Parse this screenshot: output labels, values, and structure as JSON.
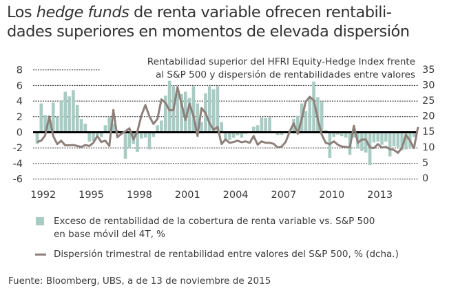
{
  "title": {
    "part1": "Los ",
    "italic": "hedge funds",
    "part2": " de renta variable ofrecen rentabili-",
    "line2": "dades superiores en momentos de elevada dispersión"
  },
  "chart_data": {
    "type": "bar+line",
    "subtitle_lines": [
      "Rentabilidad superior del HFRI Equity-Hedge Index frente",
      "al S&P 500 y dispersión de rentabilidades entre valores"
    ],
    "x_start": "1992Q1",
    "frequency": "quarterly",
    "x_tick_labels": [
      "1992",
      "1995",
      "1998",
      "2001",
      "2004",
      "2007",
      "2010",
      "2013"
    ],
    "left_axis": {
      "ylim": [
        -6,
        8
      ],
      "ticks": [
        "8",
        "6",
        "4",
        "2",
        "0",
        "-2",
        "-4",
        "-6"
      ]
    },
    "right_axis": {
      "ylim": [
        0,
        35
      ],
      "ticks": [
        "35",
        "30",
        "25",
        "20",
        "15",
        "10",
        "5",
        "0"
      ]
    },
    "grid": "horizontal dashed",
    "series": [
      {
        "name": "Exceso de rentabilidad de la cobertura de renta variable vs. S&P 500 en base móvil del 4T, %",
        "legend_lines": [
          "Exceso de rentabilidad de la cobertura de renta variable vs. S&P 500",
          "en base móvil del 4T, %"
        ],
        "type": "bar",
        "axis": "left",
        "color": "#a8cbc3",
        "values": [
          -1.5,
          3.7,
          2.2,
          1.9,
          3.8,
          2.0,
          4.1,
          5.2,
          4.6,
          5.4,
          3.5,
          1.7,
          1.1,
          -1.2,
          -1.1,
          -0.4,
          -0.6,
          0.9,
          1.9,
          1.1,
          0.3,
          -0.2,
          -3.4,
          -2.0,
          -1.5,
          -2.5,
          -0.8,
          -0.7,
          -2.2,
          -0.6,
          0.9,
          1.5,
          4.7,
          6.6,
          6.0,
          4.9,
          4.9,
          5.2,
          4.4,
          5.9,
          3.7,
          1.3,
          5.0,
          5.9,
          5.5,
          5.9,
          1.3,
          -1.0,
          -1.0,
          -0.7,
          -0.4,
          -0.7,
          -0.2,
          0,
          0.7,
          0.9,
          1.9,
          1.8,
          1.9,
          0,
          -0.35,
          -0.35,
          -0.1,
          0,
          1.7,
          2.1,
          3.7,
          2.7,
          4.4,
          6.5,
          4.5,
          3.9,
          0.3,
          -3.3,
          -0.6,
          -0.3,
          -0.5,
          -0.7,
          -2.9,
          -0.7,
          -2.1,
          -2.4,
          -2.6,
          -4.2,
          -1.3,
          -1.2,
          -1.6,
          -1.2,
          -3.1,
          -1.8,
          -1.9,
          -2.3,
          -2.2,
          -1.9,
          -0.6
        ]
      },
      {
        "name": "Dispersión trimestral de rentabilidad entre valores del S&P 500, % (dcha.)",
        "type": "line",
        "axis": "right",
        "color": "#8d7f7a",
        "values": [
          11.6,
          12.0,
          13.7,
          19.8,
          13.5,
          10.9,
          12.0,
          10.5,
          10.5,
          10.6,
          10.3,
          10.0,
          10.6,
          10.3,
          11.3,
          13.5,
          11.6,
          12.0,
          10.3,
          21.9,
          13.1,
          14.2,
          15.0,
          16.0,
          12.4,
          15.0,
          20.1,
          23.5,
          19.8,
          17.4,
          19.0,
          25.3,
          24.2,
          21.8,
          21.9,
          29.3,
          23.9,
          18.7,
          23.9,
          19.8,
          13.5,
          22.5,
          20.9,
          17.6,
          15.5,
          16.4,
          10.9,
          12.4,
          11.3,
          11.6,
          12.0,
          11.5,
          11.8,
          11.3,
          13.5,
          10.7,
          11.8,
          11.3,
          11.3,
          11.0,
          9.8,
          10.1,
          11.6,
          15.0,
          17.6,
          14.2,
          19.0,
          24.6,
          26.1,
          25.0,
          19.0,
          13.9,
          11.3,
          10.9,
          11.8,
          10.7,
          10.1,
          10.0,
          9.8,
          16.8,
          11.3,
          12.4,
          12.4,
          9.8,
          9.6,
          10.9,
          9.8,
          10.0,
          9.3,
          9.0,
          8.1,
          9.6,
          13.9,
          12.0,
          9.6,
          16.4
        ]
      }
    ],
    "zero_line_color": "#000000"
  },
  "source": "Fuente: Bloomberg, UBS, a de 13 de noviembre de 2015"
}
